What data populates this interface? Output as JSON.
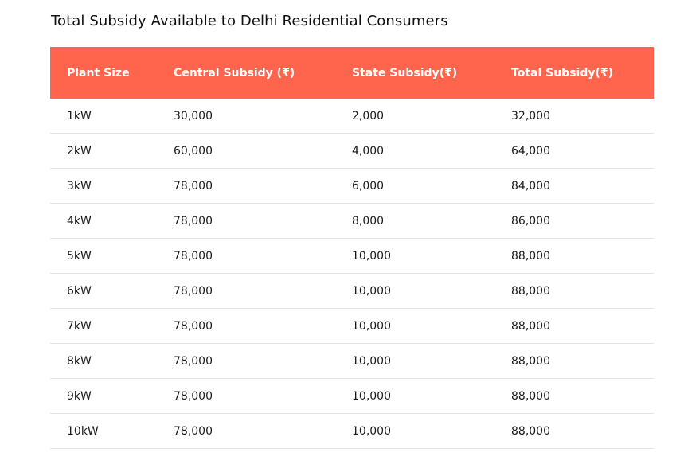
{
  "title": "Total Subsidy Available to Delhi Residential Consumers",
  "table": {
    "headers": [
      "Plant Size",
      "Central Subsidy (₹)",
      "State Subsidy(₹)",
      "Total Subsidy(₹)"
    ],
    "rows": [
      [
        "1kW",
        "30,000",
        "2,000",
        "32,000"
      ],
      [
        "2kW",
        "60,000",
        "4,000",
        "64,000"
      ],
      [
        "3kW",
        "78,000",
        "6,000",
        "84,000"
      ],
      [
        "4kW",
        "78,000",
        "8,000",
        "86,000"
      ],
      [
        "5kW",
        "78,000",
        "10,000",
        "88,000"
      ],
      [
        "6kW",
        "78,000",
        "10,000",
        "88,000"
      ],
      [
        "7kW",
        "78,000",
        "10,000",
        "88,000"
      ],
      [
        "8kW",
        "78,000",
        "10,000",
        "88,000"
      ],
      [
        "9kW",
        "78,000",
        "10,000",
        "88,000"
      ],
      [
        "10kW",
        "78,000",
        "10,000",
        "88,000"
      ]
    ]
  },
  "colors": {
    "header_background": "#ff644c",
    "header_text": "#ffffff",
    "row_divider": "#e3e3e3"
  }
}
